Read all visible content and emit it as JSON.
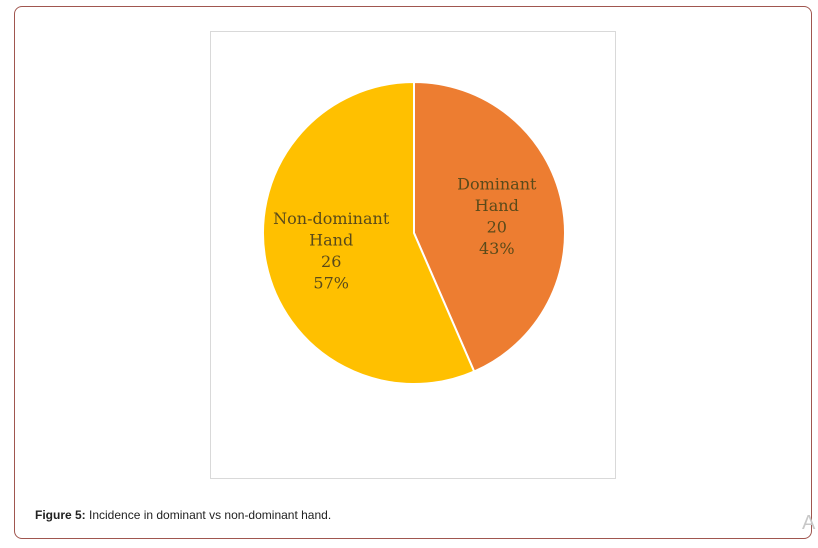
{
  "chart_data": {
    "type": "pie",
    "title": "",
    "slices": [
      {
        "label_lines": [
          "Dominant",
          "Hand"
        ],
        "value": 20,
        "percent": "43%",
        "color": "#ed7d31"
      },
      {
        "label_lines": [
          "Non-dominant",
          "Hand"
        ],
        "value": 26,
        "percent": "57%",
        "color": "#ffc000"
      }
    ],
    "legend": "none",
    "slice_border_color": "#ffffff"
  },
  "caption": {
    "label": "Figure 5:",
    "text": " Incidence in dominant vs non-dominant hand."
  },
  "corner_mark": "A"
}
